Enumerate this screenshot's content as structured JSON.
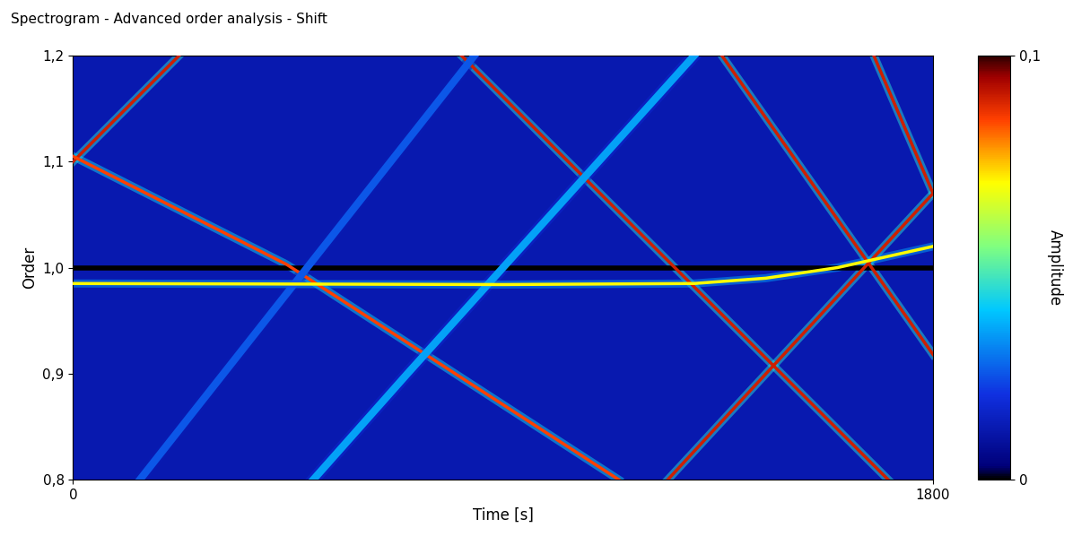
{
  "chart_data": {
    "type": "spectrogram",
    "title": "Spectrogram - Advanced order analysis - Shift",
    "x_label": "Time [s]",
    "y_label": "Order",
    "xlim": [
      0,
      1800
    ],
    "xticks": [
      0,
      1800
    ],
    "ylim": [
      0.8,
      1.2
    ],
    "yticks": [
      {
        "value": 0.8,
        "label": "0,8"
      },
      {
        "value": 0.9,
        "label": "0,9"
      },
      {
        "value": 1.0,
        "label": "1,0"
      },
      {
        "value": 1.1,
        "label": "1,1"
      },
      {
        "value": 1.2,
        "label": "1,2"
      }
    ],
    "background_amplitude": 0.012,
    "colorbar": {
      "label": "Amplitude",
      "range": [
        0,
        0.1
      ],
      "ticks": [
        {
          "value": 0,
          "label": "0"
        },
        {
          "value": 0.1,
          "label": "0,1"
        }
      ]
    },
    "series": [
      {
        "x": [
          0,
          222
        ],
        "values": [
          1.1,
          1.2
        ],
        "amplitude": 0.09
      },
      {
        "x": [
          0,
          447,
          1142
        ],
        "values": [
          1.105,
          1.003,
          0.8
        ],
        "amplitude": 0.085
      },
      {
        "x": [
          813,
          1706
        ],
        "values": [
          1.2,
          0.8
        ],
        "amplitude": 0.09
      },
      {
        "x": [
          1358,
          1800
        ],
        "values": [
          1.2,
          0.918
        ],
        "amplitude": 0.09
      },
      {
        "x": [
          1676,
          1800
        ],
        "values": [
          1.2,
          1.07
        ],
        "amplitude": 0.09
      },
      {
        "x": [
          1245,
          1800
        ],
        "values": [
          0.8,
          1.07
        ],
        "amplitude": 0.09
      },
      {
        "x": [
          503,
          700,
          900,
          1100,
          1300
        ],
        "values": [
          0.8,
          0.9,
          1.0,
          1.1,
          1.2
        ],
        "amplitude": 0.035
      },
      {
        "x": [
          140,
          840
        ],
        "values": [
          0.8,
          1.2
        ],
        "amplitude": 0.025
      },
      {
        "x": [
          0,
          1800
        ],
        "values": [
          1.0,
          1.0
        ],
        "color": "#000000"
      },
      {
        "x": [
          0,
          900,
          1300,
          1450,
          1600,
          1700,
          1800
        ],
        "values": [
          0.985,
          0.984,
          0.985,
          0.99,
          1.0,
          1.01,
          1.02
        ],
        "amplitude": 0.07
      }
    ]
  }
}
